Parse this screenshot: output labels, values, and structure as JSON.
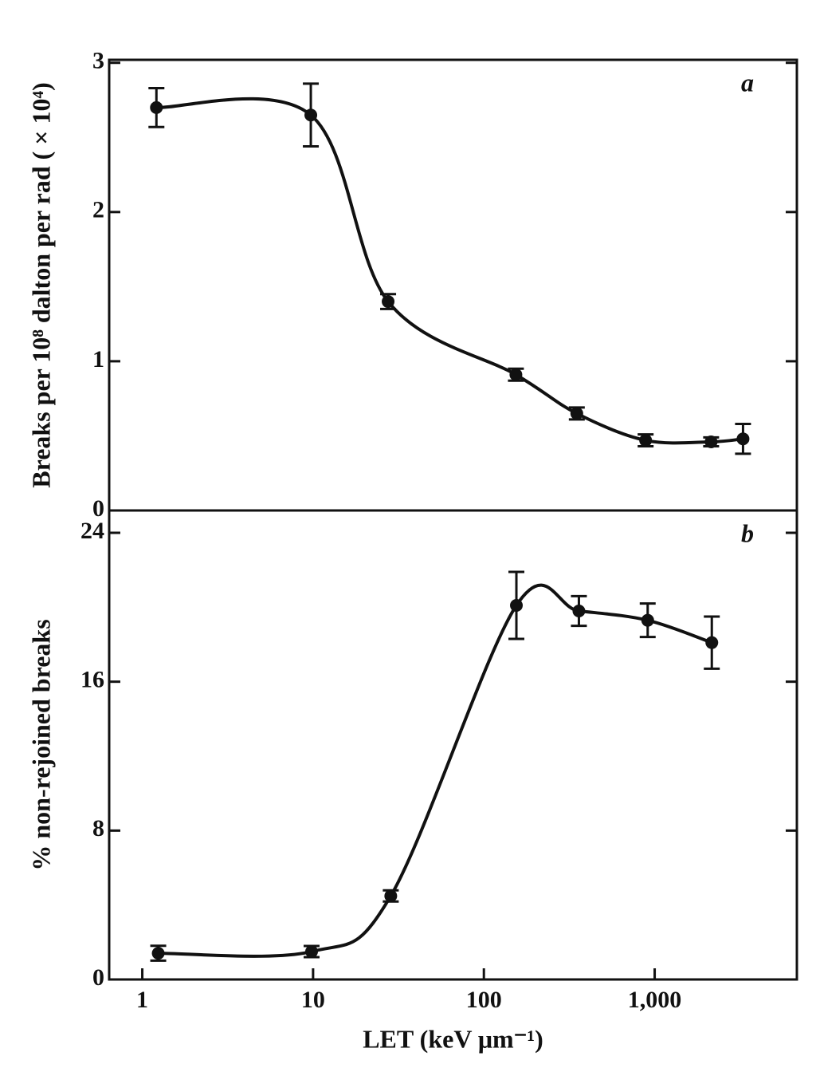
{
  "chart_data": [
    {
      "type": "line",
      "annotation": "a",
      "y_label": "Breaks per 10⁸ dalton per rad ( × 10⁴)",
      "xlog": true,
      "xlim": [
        0.64,
        6800
      ],
      "ylim": [
        0,
        3.02
      ],
      "yticks": [
        0,
        1,
        2,
        3
      ],
      "color": "#111111",
      "x": [
        1.21,
        9.7,
        27.5,
        154,
        350,
        885,
        2140,
        3290
      ],
      "values": [
        2.7,
        2.65,
        1.4,
        0.91,
        0.65,
        0.47,
        0.46,
        0.48
      ],
      "errors": [
        0.13,
        0.21,
        0.05,
        0.04,
        0.04,
        0.04,
        0.03,
        0.1
      ]
    },
    {
      "type": "line",
      "annotation": "b",
      "y_label": "% non-rejoined breaks",
      "x_label": "LET (keV μm⁻¹)",
      "xlog": true,
      "xlim": [
        0.64,
        6800
      ],
      "ylim": [
        0,
        25.2
      ],
      "yticks": [
        0,
        8,
        16,
        24
      ],
      "xticks": [
        1,
        10,
        100,
        {
          "value": 1000,
          "label": "1,000"
        }
      ],
      "color": "#111111",
      "x": [
        1.24,
        9.8,
        28.5,
        155,
        360,
        910,
        2160
      ],
      "values": [
        1.41,
        1.5,
        4.49,
        20.1,
        19.8,
        19.3,
        18.1
      ],
      "errors": [
        0.4,
        0.3,
        0.3,
        1.8,
        0.8,
        0.9,
        1.4
      ]
    }
  ]
}
